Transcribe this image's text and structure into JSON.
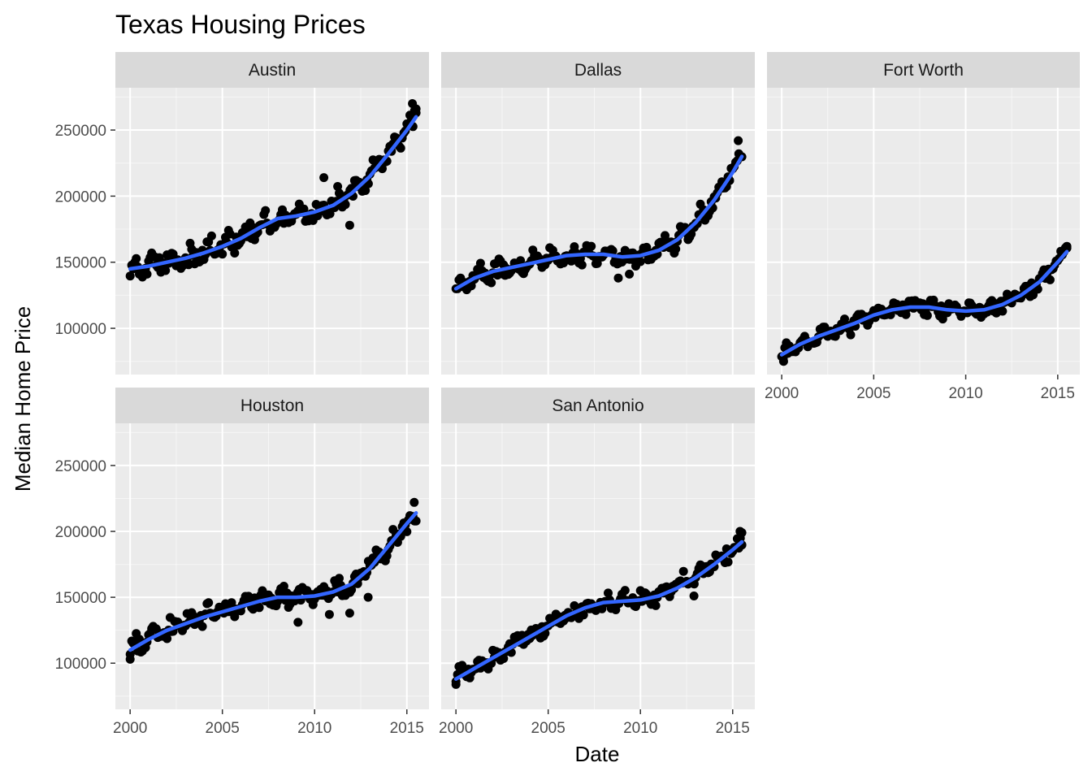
{
  "chart_data": {
    "type": "scatter",
    "title": "Texas Housing Prices",
    "xlabel": "Date",
    "ylabel": "Median Home Price",
    "xlim": [
      1999.2,
      2016.2
    ],
    "ylim": [
      65000,
      282000
    ],
    "x_ticks": [
      2000,
      2005,
      2010,
      2015
    ],
    "x_tick_labels": [
      "2000",
      "2005",
      "2010",
      "2015"
    ],
    "y_ticks": [
      100000,
      150000,
      200000,
      250000
    ],
    "y_tick_labels": [
      "100000",
      "150000",
      "200000",
      "250000"
    ],
    "grid": true,
    "legend": "none",
    "colors": {
      "panel_bg": "#EBEBEB",
      "strip_bg": "#D9D9D9",
      "grid_major": "#FFFFFF",
      "points": "#000000",
      "smooth": "#3366FF"
    },
    "panels": [
      {
        "name": "Austin",
        "smooth": [
          [
            2000,
            145000
          ],
          [
            2001,
            147000
          ],
          [
            2002,
            150000
          ],
          [
            2003,
            153000
          ],
          [
            2004,
            157000
          ],
          [
            2005,
            162000
          ],
          [
            2006,
            168000
          ],
          [
            2007,
            176000
          ],
          [
            2008,
            183000
          ],
          [
            2009,
            185000
          ],
          [
            2010,
            188000
          ],
          [
            2011,
            193000
          ],
          [
            2012,
            202000
          ],
          [
            2013,
            215000
          ],
          [
            2014,
            232000
          ],
          [
            2015,
            250000
          ],
          [
            2015.5,
            260000
          ]
        ],
        "amplitude": 8000,
        "extra_points": [
          [
            2010.5,
            214000
          ],
          [
            2011.9,
            178000
          ],
          [
            2015.3,
            270000
          ],
          [
            2015.5,
            266000
          ]
        ]
      },
      {
        "name": "Dallas",
        "smooth": [
          [
            2000,
            130000
          ],
          [
            2001,
            138000
          ],
          [
            2002,
            143000
          ],
          [
            2003,
            146000
          ],
          [
            2004,
            149000
          ],
          [
            2005,
            152000
          ],
          [
            2006,
            155000
          ],
          [
            2007,
            156000
          ],
          [
            2008,
            156000
          ],
          [
            2009,
            154000
          ],
          [
            2010,
            155000
          ],
          [
            2011,
            159000
          ],
          [
            2012,
            167000
          ],
          [
            2013,
            180000
          ],
          [
            2014,
            197000
          ],
          [
            2015,
            218000
          ],
          [
            2015.5,
            230000
          ]
        ],
        "amplitude": 7000,
        "extra_points": [
          [
            2008.8,
            138000
          ],
          [
            2009.4,
            141000
          ],
          [
            2015.3,
            242000
          ]
        ]
      },
      {
        "name": "Fort Worth",
        "smooth": [
          [
            2000,
            80000
          ],
          [
            2001,
            88000
          ],
          [
            2002,
            94000
          ],
          [
            2003,
            99000
          ],
          [
            2004,
            104000
          ],
          [
            2005,
            110000
          ],
          [
            2006,
            114000
          ],
          [
            2007,
            116000
          ],
          [
            2008,
            116000
          ],
          [
            2009,
            114000
          ],
          [
            2010,
            113000
          ],
          [
            2011,
            114000
          ],
          [
            2012,
            118000
          ],
          [
            2013,
            125000
          ],
          [
            2014,
            135000
          ],
          [
            2015,
            150000
          ],
          [
            2015.5,
            158000
          ]
        ],
        "amplitude": 6000,
        "extra_points": [
          [
            2000.1,
            75000
          ],
          [
            2013.5,
            124000
          ],
          [
            2015.5,
            162000
          ]
        ]
      },
      {
        "name": "Houston",
        "smooth": [
          [
            2000,
            110000
          ],
          [
            2001,
            118000
          ],
          [
            2002,
            125000
          ],
          [
            2003,
            130000
          ],
          [
            2004,
            135000
          ],
          [
            2005,
            139000
          ],
          [
            2006,
            143000
          ],
          [
            2007,
            147000
          ],
          [
            2008,
            150000
          ],
          [
            2009,
            150000
          ],
          [
            2010,
            151000
          ],
          [
            2011,
            154000
          ],
          [
            2012,
            160000
          ],
          [
            2013,
            172000
          ],
          [
            2014,
            189000
          ],
          [
            2015,
            206000
          ],
          [
            2015.5,
            214000
          ]
        ],
        "amplitude": 7000,
        "extra_points": [
          [
            2000,
            103000
          ],
          [
            2009.1,
            131000
          ],
          [
            2010.8,
            137000
          ],
          [
            2011.9,
            138000
          ],
          [
            2012.9,
            150000
          ],
          [
            2015.4,
            222000
          ]
        ]
      },
      {
        "name": "San Antonio",
        "smooth": [
          [
            2000,
            88000
          ],
          [
            2001,
            96000
          ],
          [
            2002,
            104000
          ],
          [
            2003,
            112000
          ],
          [
            2004,
            120000
          ],
          [
            2005,
            128000
          ],
          [
            2006,
            136000
          ],
          [
            2007,
            142000
          ],
          [
            2008,
            146000
          ],
          [
            2009,
            147000
          ],
          [
            2010,
            148000
          ],
          [
            2011,
            151000
          ],
          [
            2012,
            157000
          ],
          [
            2013,
            165000
          ],
          [
            2014,
            175000
          ],
          [
            2015,
            186000
          ],
          [
            2015.5,
            192000
          ]
        ],
        "amplitude": 6000,
        "extra_points": [
          [
            2000,
            86000
          ],
          [
            2012.9,
            151000
          ],
          [
            2015.4,
            200000
          ],
          [
            2015.5,
            199000
          ]
        ]
      }
    ]
  }
}
